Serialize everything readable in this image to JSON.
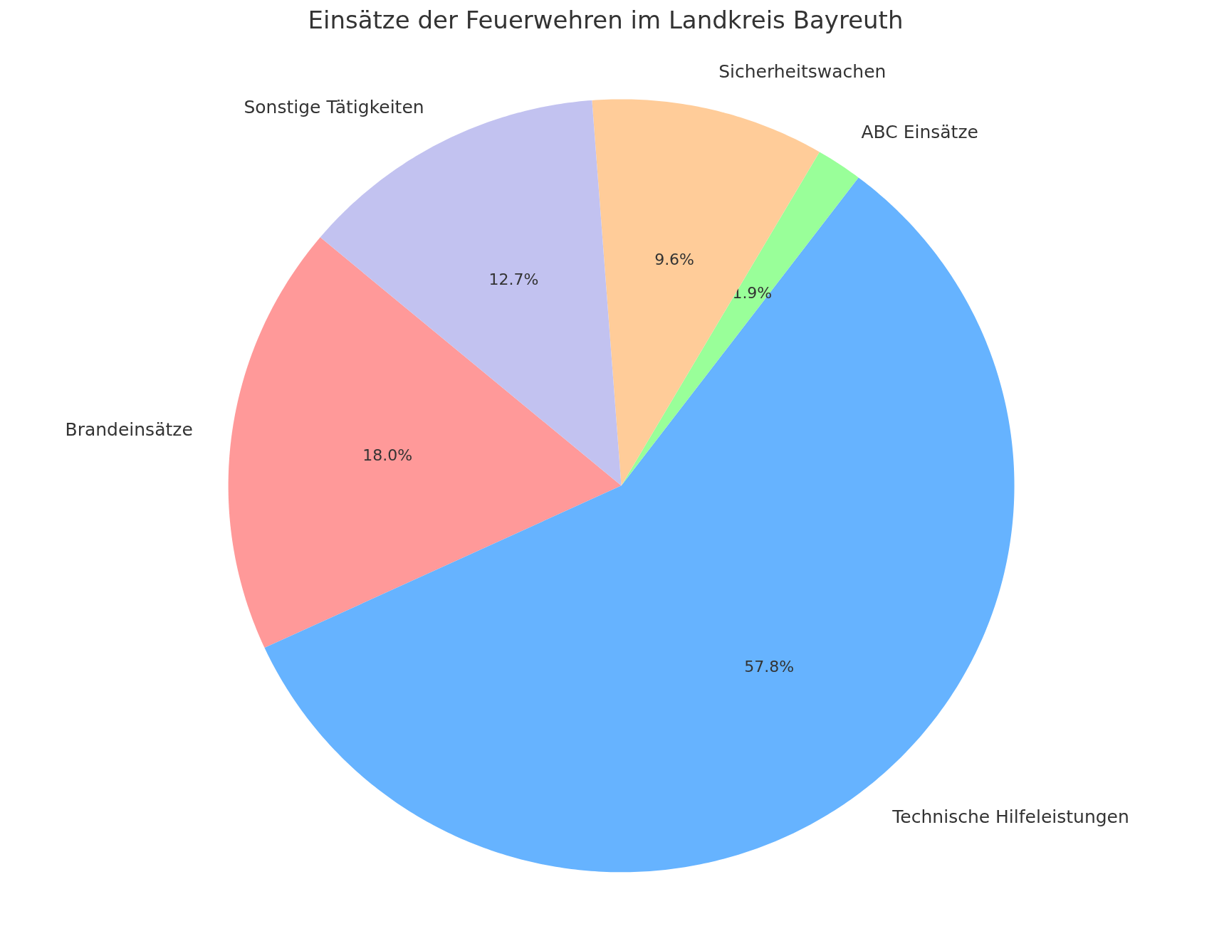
{
  "chart_data": {
    "type": "pie",
    "title": "Einsätze der Feuerwehren im Landkreis Bayreuth",
    "categories": [
      "Brandeinsätze",
      "Technische Hilfeleistungen",
      "ABC Einsätze",
      "Sicherheitswachen",
      "Sonstige Tätigkeiten"
    ],
    "values": [
      18.0,
      57.8,
      1.9,
      9.6,
      12.7
    ],
    "colors": [
      "#ff9999",
      "#66b3ff",
      "#99ff99",
      "#ffcc99",
      "#c2c2f0"
    ],
    "value_labels": [
      "18.0%",
      "57.8%",
      "1.9%",
      "9.6%",
      "12.7%"
    ]
  }
}
